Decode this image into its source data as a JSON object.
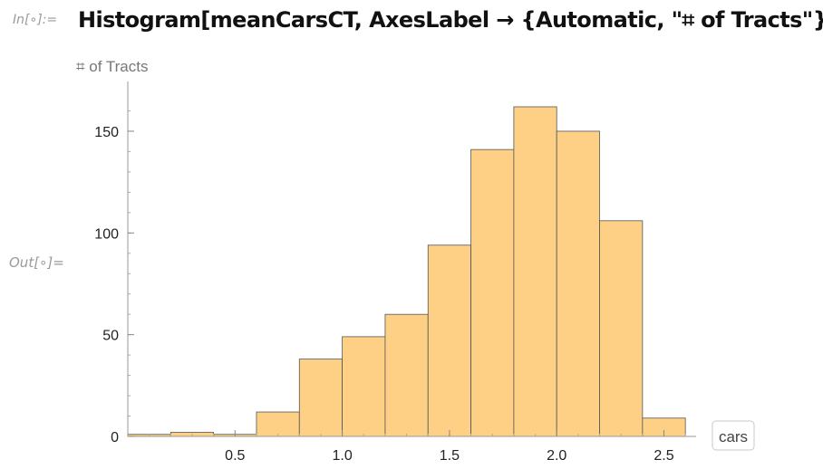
{
  "cell": {
    "in_label": "In[∘]:=",
    "out_label": "Out[∘]=",
    "input_code": "Histogram[meanCarsCT, AxesLabel → {Automatic, \"⌗ of Tracts\"}]"
  },
  "chart_data": {
    "type": "bar",
    "xlabel": "cars",
    "ylabel": "⌗ of Tracts",
    "bin_width": 0.2,
    "bin_edges": [
      0.0,
      0.2,
      0.4,
      0.6,
      0.8,
      1.0,
      1.2,
      1.4,
      1.6,
      1.8,
      2.0,
      2.2,
      2.4,
      2.6
    ],
    "values": [
      1,
      2,
      1,
      12,
      38,
      49,
      60,
      94,
      141,
      162,
      150,
      106,
      9
    ],
    "xlim": [
      0.0,
      2.65
    ],
    "ylim": [
      0,
      170
    ],
    "x_ticks": [
      0.5,
      1.0,
      1.5,
      2.0,
      2.5
    ],
    "x_tick_labels": [
      "0.5",
      "1.0",
      "1.5",
      "2.0",
      "2.5"
    ],
    "y_ticks": [
      0,
      50,
      100,
      150
    ],
    "y_tick_labels": [
      "0",
      "50",
      "100",
      "150"
    ],
    "bar_fill": "#fdd085",
    "bar_stroke": "#555555"
  }
}
